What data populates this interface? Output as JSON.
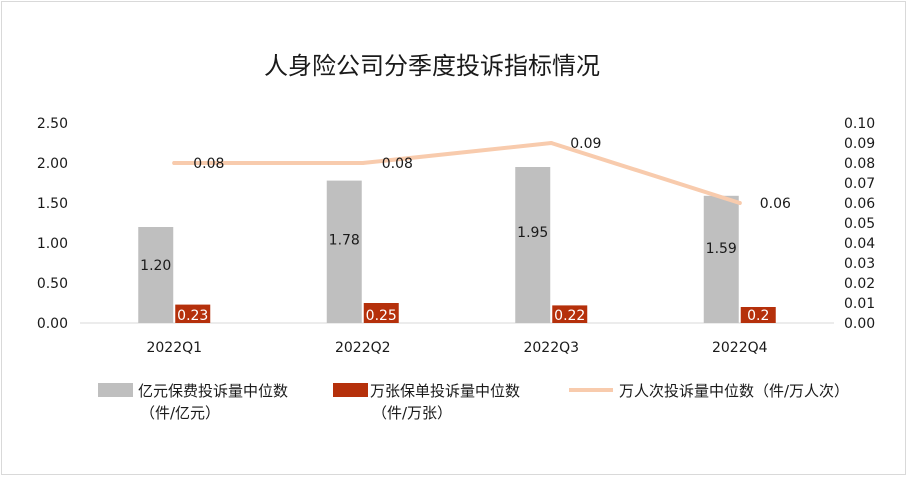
{
  "chart_data": {
    "type": "bar",
    "title": "人身险公司分季度投诉指标情况",
    "categories": [
      "2022Q1",
      "2022Q2",
      "2022Q3",
      "2022Q4"
    ],
    "series": [
      {
        "name": "亿元保费投诉量中位数（件/亿元）",
        "legend_lines": [
          "亿元保费投诉量中位数",
          "（件/亿元）"
        ],
        "type": "bar",
        "axis": "left",
        "color": "#bfbfbf",
        "values": [
          1.2,
          1.78,
          1.95,
          1.59
        ],
        "labels": [
          "1.20",
          "1.78",
          "1.95",
          "1.59"
        ]
      },
      {
        "name": "万张保单投诉量中位数（件/万张）",
        "legend_lines": [
          "万张保单投诉量中位数",
          "（件/万张）"
        ],
        "type": "bar",
        "axis": "left",
        "color": "#b5300b",
        "values": [
          0.23,
          0.25,
          0.22,
          0.2
        ],
        "labels": [
          "0.23",
          "0.25",
          "0.22",
          "0.2"
        ]
      },
      {
        "name": "万人次投诉量中位数（件/万人次）",
        "legend_lines": [
          "万人次投诉量中位数（件/万人次）"
        ],
        "type": "line",
        "axis": "right",
        "color": "#f8cbad",
        "values": [
          0.08,
          0.08,
          0.09,
          0.06
        ],
        "labels": [
          "0.08",
          "0.08",
          "0.09",
          "0.06"
        ]
      }
    ],
    "y_left": {
      "ylim": [
        0,
        2.5
      ],
      "ticks": [
        "0.00",
        "0.50",
        "1.00",
        "1.50",
        "2.00",
        "2.50"
      ]
    },
    "y_right": {
      "ylim": [
        0,
        0.1
      ],
      "ticks": [
        "0.00",
        "0.01",
        "0.02",
        "0.03",
        "0.04",
        "0.05",
        "0.06",
        "0.07",
        "0.08",
        "0.09",
        "0.10"
      ]
    },
    "grid": false,
    "legend_position": "bottom"
  }
}
